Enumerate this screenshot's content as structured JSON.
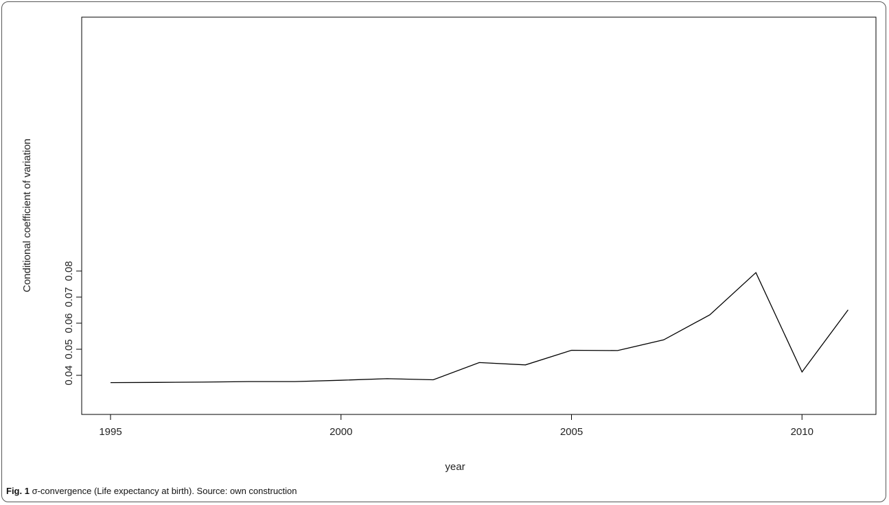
{
  "chart_data": {
    "type": "line",
    "title": "",
    "xlabel": "year",
    "ylabel": "Conditional coefficient of variation",
    "xlim": [
      1995,
      2011
    ],
    "ylim": [
      0.035,
      0.081
    ],
    "x_ticks": [
      1995,
      2000,
      2005,
      2010
    ],
    "x_tick_labels": [
      "1995",
      "2000",
      "2005",
      "2010"
    ],
    "y_ticks": [
      0.04,
      0.05,
      0.06,
      0.07,
      0.08
    ],
    "y_tick_labels": [
      "0.04",
      "0.05",
      "0.06",
      "0.07",
      "0.08"
    ],
    "grid": false,
    "legend": "none",
    "series": [
      {
        "x": [
          1995,
          1996,
          1997,
          1998,
          1999,
          2000,
          2001,
          2002,
          2003,
          2004,
          2005,
          2006,
          2007,
          2008,
          2009,
          2010,
          2011
        ],
        "y": [
          0.0372,
          0.0373,
          0.0374,
          0.0376,
          0.0376,
          0.0381,
          0.0387,
          0.0383,
          0.0449,
          0.044,
          0.0496,
          0.0495,
          0.0536,
          0.0632,
          0.0794,
          0.0413,
          0.0651
        ],
        "color": "#000000"
      }
    ]
  },
  "caption": {
    "label": "Fig. 1",
    "text": " σ-convergence (Life expectancy at birth). Source: own construction"
  }
}
